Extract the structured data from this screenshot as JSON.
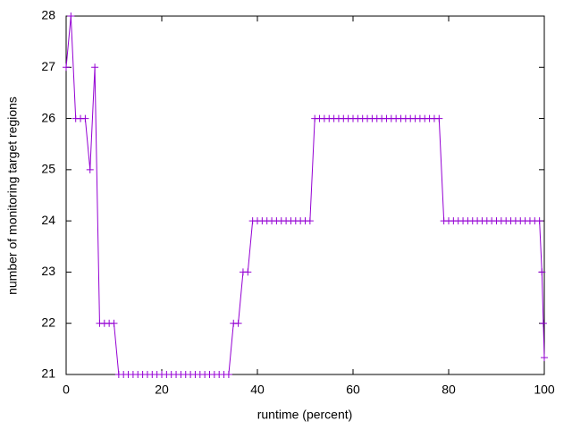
{
  "chart_data": {
    "type": "line",
    "xlabel": "runtime (percent)",
    "ylabel": "number of monitoring target regions",
    "x": [
      0,
      1,
      2,
      3,
      4,
      5,
      6,
      7,
      8,
      9,
      10,
      11,
      12,
      13,
      14,
      15,
      16,
      17,
      18,
      19,
      20,
      21,
      22,
      23,
      24,
      25,
      26,
      27,
      28,
      29,
      30,
      31,
      32,
      33,
      34,
      35,
      36,
      37,
      38,
      39,
      40,
      41,
      42,
      43,
      44,
      45,
      46,
      47,
      48,
      49,
      50,
      51,
      52,
      53,
      54,
      55,
      56,
      57,
      58,
      59,
      60,
      61,
      62,
      63,
      64,
      65,
      66,
      67,
      68,
      69,
      70,
      71,
      72,
      73,
      74,
      75,
      76,
      77,
      78,
      79,
      80,
      81,
      82,
      83,
      84,
      85,
      86,
      87,
      88,
      89,
      90,
      91,
      92,
      93,
      94,
      95,
      96,
      97,
      98,
      99,
      99.5,
      99.8,
      100
    ],
    "values": [
      27,
      28,
      26,
      26,
      26,
      25,
      27,
      22,
      22,
      22,
      22,
      21,
      21,
      21,
      21,
      21,
      21,
      21,
      21,
      21,
      21,
      21,
      21,
      21,
      21,
      21,
      21,
      21,
      21,
      21,
      21,
      21,
      21,
      21,
      21,
      22,
      22,
      23,
      23,
      24,
      24,
      24,
      24,
      24,
      24,
      24,
      24,
      24,
      24,
      24,
      24,
      24,
      26,
      26,
      26,
      26,
      26,
      26,
      26,
      26,
      26,
      26,
      26,
      26,
      26,
      26,
      26,
      26,
      26,
      26,
      26,
      26,
      26,
      26,
      26,
      26,
      26,
      26,
      26,
      24,
      24,
      24,
      24,
      24,
      24,
      24,
      24,
      24,
      24,
      24,
      24,
      24,
      24,
      24,
      24,
      24,
      24,
      24,
      24,
      24,
      23,
      22,
      21.33
    ],
    "color": "#9400d3",
    "marker": "+",
    "xlim": [
      0,
      100
    ],
    "xticks": [
      0,
      20,
      40,
      60,
      80,
      100
    ],
    "ylim": [
      21,
      28
    ],
    "yticks": [
      21,
      22,
      23,
      24,
      25,
      26,
      27,
      28
    ]
  }
}
